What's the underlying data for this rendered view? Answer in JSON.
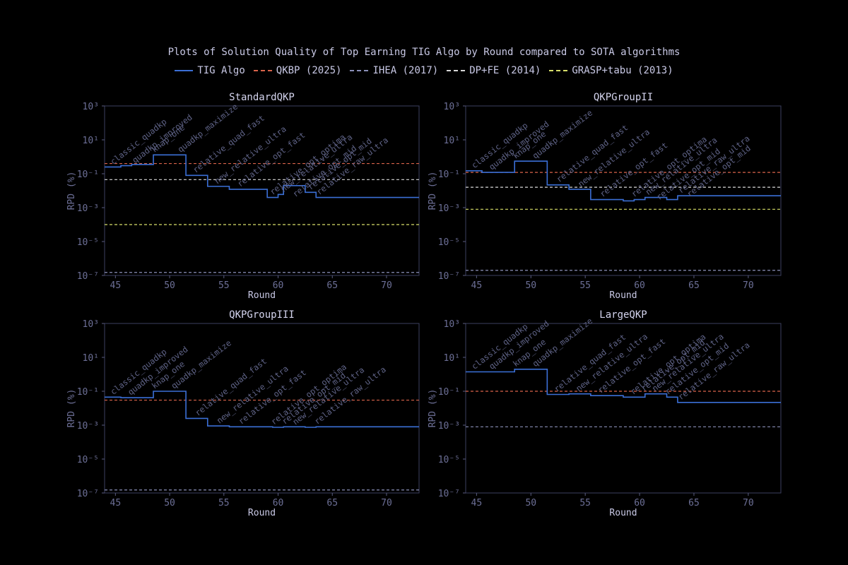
{
  "title": "Plots of Solution Quality of Top Earning TIG Algo by Round compared to SOTA algorithms",
  "legend": [
    {
      "label": "TIG Algo",
      "color": "#3b6fd6",
      "dash": "solid"
    },
    {
      "label": "QKBP (2025)",
      "color": "#d9634a",
      "dash": "dashed"
    },
    {
      "label": "IHEA (2017)",
      "color": "#8a8fb8",
      "dash": "dashed"
    },
    {
      "label": "DP+FE (2014)",
      "color": "#d8d8d8",
      "dash": "dashed"
    },
    {
      "label": "GRASP+tabu (2013)",
      "color": "#d8df6a",
      "dash": "dashed"
    }
  ],
  "chart_data": [
    {
      "type": "line",
      "title": "StandardQKP",
      "xlabel": "Round",
      "ylabel": "RPD (%)",
      "xlim": [
        44,
        73
      ],
      "ylim": [
        1e-07,
        1000
      ],
      "yscale": "log",
      "xticks": [
        "45",
        "50",
        "55",
        "60",
        "65",
        "70"
      ],
      "yticks": [
        "10³",
        "10¹",
        "10⁻¹",
        "10⁻³",
        "10⁻⁵",
        "10⁻⁷"
      ],
      "tig_steps": [
        [
          44,
          0.25
        ],
        [
          45.5,
          0.3
        ],
        [
          46.5,
          0.35
        ],
        [
          48.5,
          1.3
        ],
        [
          51.5,
          0.08
        ],
        [
          53.5,
          0.018
        ],
        [
          55.5,
          0.012
        ],
        [
          59,
          0.004
        ],
        [
          60,
          0.006
        ],
        [
          60.5,
          0.02
        ],
        [
          62.5,
          0.008
        ],
        [
          63.5,
          0.004
        ],
        [
          73,
          0.004
        ]
      ],
      "baselines": [
        {
          "name": "QKBP (2025)",
          "value": 0.4
        },
        {
          "name": "DP+FE (2014)",
          "value": 0.045
        },
        {
          "name": "GRASP+tabu (2013)",
          "value": 0.0001
        },
        {
          "name": "IHEA (2017)",
          "value": 1.5e-07
        }
      ],
      "annotations": [
        {
          "text": "classic_quadkp",
          "x": 44.8,
          "y": 0.25
        },
        {
          "text": "quadkp_improved",
          "x": 46.8,
          "y": 0.3
        },
        {
          "text": "knap_one",
          "x": 48.6,
          "y": 1.3
        },
        {
          "text": "quadkp_maximize",
          "x": 51,
          "y": 1.3
        },
        {
          "text": "relative_quad_fast",
          "x": 52.4,
          "y": 0.08
        },
        {
          "text": "new_relative_ultra",
          "x": 54.4,
          "y": 0.018
        },
        {
          "text": "relative_opt_fast",
          "x": 56.5,
          "y": 0.012
        },
        {
          "text": "relative_opt_optima",
          "x": 59.5,
          "y": 0.004
        },
        {
          "text": "new_relative_ultra",
          "x": 60.5,
          "y": 0.006
        },
        {
          "text": "relative_opt_mid",
          "x": 61.6,
          "y": 0.003
        },
        {
          "text": "relative_opt_mid",
          "x": 63,
          "y": 0.008
        },
        {
          "text": "relative_raw_ultra",
          "x": 63.8,
          "y": 0.004
        }
      ]
    },
    {
      "type": "line",
      "title": "QKPGroupII",
      "xlabel": "Round",
      "ylabel": "RPD (%)",
      "xlim": [
        44,
        73
      ],
      "ylim": [
        1e-07,
        1000
      ],
      "yscale": "log",
      "xticks": [
        "45",
        "50",
        "55",
        "60",
        "65",
        "70"
      ],
      "yticks": [
        "10³",
        "10¹",
        "10⁻¹",
        "10⁻³",
        "10⁻⁵",
        "10⁻⁷"
      ],
      "tig_steps": [
        [
          44,
          0.15
        ],
        [
          45.5,
          0.12
        ],
        [
          48.5,
          0.55
        ],
        [
          51.5,
          0.022
        ],
        [
          53.5,
          0.012
        ],
        [
          55.5,
          0.003
        ],
        [
          58.5,
          0.0025
        ],
        [
          59.5,
          0.003
        ],
        [
          60.5,
          0.004
        ],
        [
          62.5,
          0.003
        ],
        [
          63.5,
          0.005
        ],
        [
          73,
          0.005
        ]
      ],
      "baselines": [
        {
          "name": "QKBP (2025)",
          "value": 0.12
        },
        {
          "name": "DP+FE (2014)",
          "value": 0.016
        },
        {
          "name": "GRASP+tabu (2013)",
          "value": 0.0008
        },
        {
          "name": "IHEA (2017)",
          "value": 2e-07
        }
      ],
      "annotations": [
        {
          "text": "classic_quadkp",
          "x": 44.8,
          "y": 0.15
        },
        {
          "text": "quadkp_improved",
          "x": 46.4,
          "y": 0.12
        },
        {
          "text": "knap_one",
          "x": 48.6,
          "y": 0.55
        },
        {
          "text": "quadkp_maximize",
          "x": 50.4,
          "y": 0.55
        },
        {
          "text": "relative_quad_fast",
          "x": 52.6,
          "y": 0.022
        },
        {
          "text": "new_relative_ultra",
          "x": 54.6,
          "y": 0.012
        },
        {
          "text": "relative_opt_fast",
          "x": 56.6,
          "y": 0.003
        },
        {
          "text": "relative_opt_optima",
          "x": 59.5,
          "y": 0.003
        },
        {
          "text": "new_relative_ultra",
          "x": 60.8,
          "y": 0.004
        },
        {
          "text": "relative_opt_mid",
          "x": 61.8,
          "y": 0.002
        },
        {
          "text": "relative_raw_ultra",
          "x": 63.8,
          "y": 0.005
        },
        {
          "text": "relative_opt_mid",
          "x": 64.6,
          "y": 0.003
        }
      ]
    },
    {
      "type": "line",
      "title": "QKPGroupIII",
      "xlabel": "Round",
      "ylabel": "RPD (%)",
      "xlim": [
        44,
        73
      ],
      "ylim": [
        1e-07,
        1000
      ],
      "yscale": "log",
      "xticks": [
        "45",
        "50",
        "55",
        "60",
        "65",
        "70"
      ],
      "yticks": [
        "10³",
        "10¹",
        "10⁻¹",
        "10⁻³",
        "10⁻⁵",
        "10⁻⁷"
      ],
      "tig_steps": [
        [
          44,
          0.045
        ],
        [
          45.5,
          0.042
        ],
        [
          48.5,
          0.1
        ],
        [
          51.5,
          0.0025
        ],
        [
          53.5,
          0.0009
        ],
        [
          55.5,
          0.0008
        ],
        [
          59.5,
          0.00075
        ],
        [
          60.5,
          0.0008
        ],
        [
          62.5,
          0.00075
        ],
        [
          63.5,
          0.0008
        ],
        [
          73,
          0.0008
        ]
      ],
      "baselines": [
        {
          "name": "QKBP (2025)",
          "value": 0.03
        },
        {
          "name": "IHEA (2017)",
          "value": 1.5e-07
        }
      ],
      "annotations": [
        {
          "text": "classic_quadkp",
          "x": 44.8,
          "y": 0.045
        },
        {
          "text": "quadkp_improved",
          "x": 46.4,
          "y": 0.042
        },
        {
          "text": "knap_one",
          "x": 48.6,
          "y": 0.1
        },
        {
          "text": "quadkp_maximize",
          "x": 50.4,
          "y": 0.1
        },
        {
          "text": "relative_quad_fast",
          "x": 52.6,
          "y": 0.0025
        },
        {
          "text": "new_relative_ultra",
          "x": 54.6,
          "y": 0.0009
        },
        {
          "text": "relative_opt_fast",
          "x": 56.6,
          "y": 0.0008
        },
        {
          "text": "relative_opt_optima",
          "x": 59.6,
          "y": 0.00075
        },
        {
          "text": "relative_opt_mid",
          "x": 60.6,
          "y": 0.0008
        },
        {
          "text": "new_relative_ultra",
          "x": 61.6,
          "y": 0.00075
        },
        {
          "text": "relative_raw_ultra",
          "x": 63.6,
          "y": 0.0008
        }
      ]
    },
    {
      "type": "line",
      "title": "LargeQKP",
      "xlabel": "Round",
      "ylabel": "RPD (%)",
      "xlim": [
        44,
        73
      ],
      "ylim": [
        1e-07,
        1000
      ],
      "yscale": "log",
      "xticks": [
        "45",
        "50",
        "55",
        "60",
        "65",
        "70"
      ],
      "yticks": [
        "10³",
        "10¹",
        "10⁻¹",
        "10⁻³",
        "10⁻⁵",
        "10⁻⁷"
      ],
      "tig_steps": [
        [
          44,
          1.4
        ],
        [
          48.5,
          2.0
        ],
        [
          51.5,
          0.065
        ],
        [
          53.5,
          0.07
        ],
        [
          55.5,
          0.055
        ],
        [
          58.5,
          0.045
        ],
        [
          60.5,
          0.07
        ],
        [
          62.5,
          0.045
        ],
        [
          63.5,
          0.022
        ],
        [
          73,
          0.022
        ]
      ],
      "baselines": [
        {
          "name": "QKBP (2025)",
          "value": 0.1
        },
        {
          "name": "IHEA (2017)",
          "value": 0.0008
        }
      ],
      "annotations": [
        {
          "text": "classic_quadkp",
          "x": 44.8,
          "y": 1.4
        },
        {
          "text": "quadkp_improved",
          "x": 46.4,
          "y": 1.4
        },
        {
          "text": "knap_one",
          "x": 48.6,
          "y": 2.0
        },
        {
          "text": "quadkp_maximize",
          "x": 50.4,
          "y": 2.0
        },
        {
          "text": "relative_quad_fast",
          "x": 52.4,
          "y": 0.065
        },
        {
          "text": "new_relative_ultra",
          "x": 54.4,
          "y": 0.07
        },
        {
          "text": "relative_opt_fast",
          "x": 56.4,
          "y": 0.055
        },
        {
          "text": "relative_opt_optima",
          "x": 59.4,
          "y": 0.045
        },
        {
          "text": "relative_opt_mid",
          "x": 60.4,
          "y": 0.07
        },
        {
          "text": "new_relative_ultra",
          "x": 61.4,
          "y": 0.07
        },
        {
          "text": "relative_opt_mid",
          "x": 62.6,
          "y": 0.045
        },
        {
          "text": "relative_raw_ultra",
          "x": 63.8,
          "y": 0.022
        }
      ]
    }
  ]
}
